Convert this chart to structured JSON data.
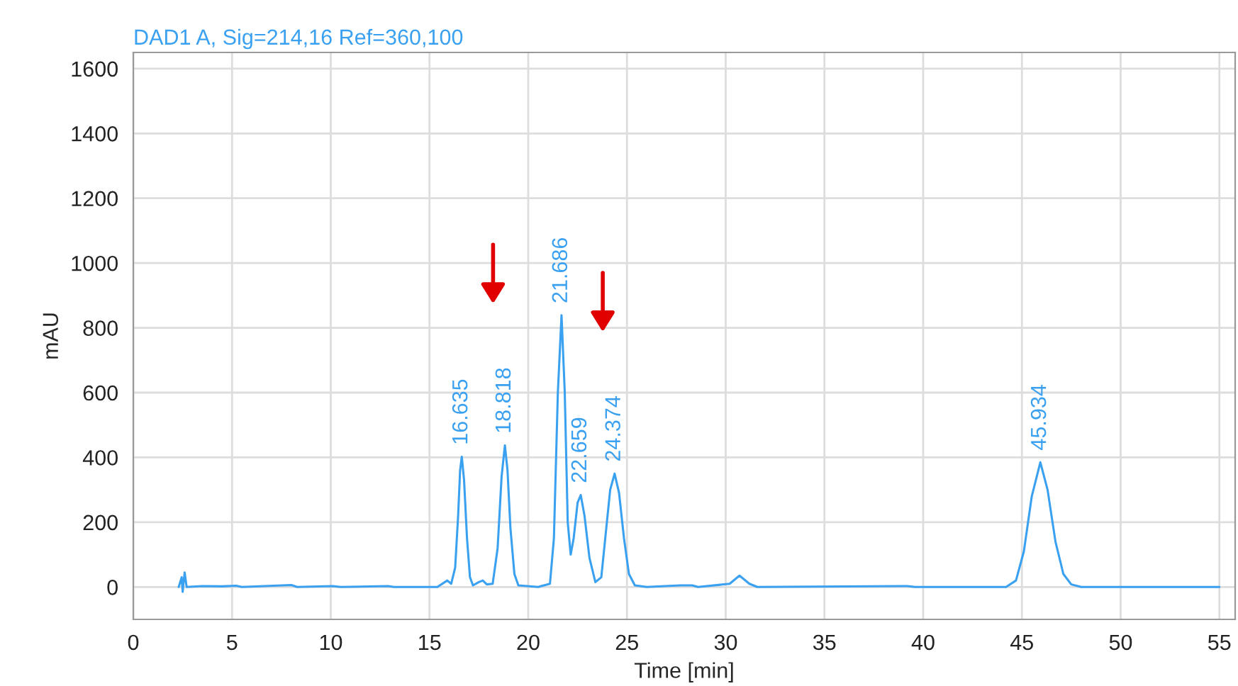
{
  "chart_data": {
    "type": "line",
    "title": "DAD1 A, Sig=214,16 Ref=360,100",
    "xlabel": "Time [min]",
    "ylabel": "mAU",
    "xlim": [
      0,
      55.8
    ],
    "ylim": [
      -100,
      1650
    ],
    "xticks": [
      0,
      5,
      10,
      15,
      20,
      25,
      30,
      35,
      40,
      45,
      50,
      55
    ],
    "yticks": [
      0,
      200,
      400,
      600,
      800,
      1000,
      1200,
      1400,
      1600
    ],
    "grid": true,
    "marker": "none",
    "line_style": "solid",
    "series": [
      {
        "color": "#3aa0f0",
        "x": [
          2.3,
          2.45,
          2.5,
          2.6,
          2.7,
          3.5,
          4.5,
          5.2,
          5.5,
          8.0,
          8.3,
          10.1,
          10.5,
          12.9,
          13.2,
          15.4,
          15.9,
          16.1,
          16.3,
          16.45,
          16.55,
          16.635,
          16.75,
          16.9,
          17.05,
          17.2,
          17.5,
          17.7,
          17.9,
          18.2,
          18.45,
          18.65,
          18.818,
          18.95,
          19.1,
          19.3,
          19.5,
          20.5,
          21.1,
          21.3,
          21.5,
          21.686,
          21.85,
          22.0,
          22.15,
          22.3,
          22.5,
          22.659,
          22.85,
          23.1,
          23.4,
          23.7,
          23.9,
          24.15,
          24.374,
          24.6,
          24.85,
          25.1,
          25.4,
          26,
          27.7,
          28.3,
          28.6,
          30.2,
          30.7,
          31.2,
          31.6,
          39.2,
          39.6,
          44.2,
          44.7,
          45.1,
          45.5,
          45.934,
          46.3,
          46.7,
          47.1,
          47.5,
          48.0,
          55
        ],
        "values": [
          0,
          30,
          -15,
          45,
          0,
          3,
          2,
          4,
          0,
          6,
          0,
          3,
          0,
          3,
          0,
          0,
          20,
          10,
          60,
          220,
          360,
          402,
          330,
          150,
          30,
          5,
          15,
          20,
          8,
          10,
          120,
          340,
          437,
          360,
          180,
          40,
          5,
          0,
          10,
          150,
          600,
          839,
          600,
          200,
          100,
          150,
          260,
          284,
          220,
          90,
          15,
          30,
          150,
          300,
          350,
          290,
          150,
          40,
          5,
          0,
          5,
          5,
          0,
          10,
          35,
          10,
          0,
          3,
          0,
          0,
          20,
          110,
          280,
          385,
          300,
          140,
          40,
          8,
          0,
          0
        ]
      }
    ],
    "annotations": [
      {
        "text": "16.635",
        "x": 16.635,
        "y": 402
      },
      {
        "text": "18.818",
        "x": 18.818,
        "y": 437
      },
      {
        "text": "21.686",
        "x": 21.686,
        "y": 839
      },
      {
        "text": "22.659",
        "x": 22.659,
        "y": 284
      },
      {
        "text": "24.374",
        "x": 24.374,
        "y": 350
      },
      {
        "text": "45.934",
        "x": 45.934,
        "y": 385
      }
    ]
  }
}
